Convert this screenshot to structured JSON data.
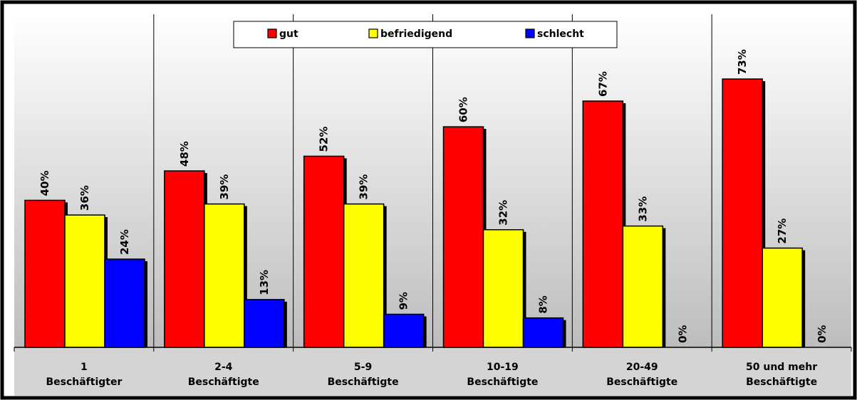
{
  "chart_data": {
    "type": "bar",
    "categories": [
      [
        "1",
        "Beschäftigter"
      ],
      [
        "2-4",
        "Beschäftigte"
      ],
      [
        "5-9",
        "Beschäftigte"
      ],
      [
        "10-19",
        "Beschäftigte"
      ],
      [
        "20-49",
        "Beschäftigte"
      ],
      [
        "50 und mehr",
        "Beschäftigte"
      ]
    ],
    "series": [
      {
        "name": "gut",
        "color": "#ff0000",
        "values": [
          40,
          48,
          52,
          60,
          67,
          73
        ],
        "labels": [
          "40%",
          "48%",
          "52%",
          "60%",
          "67%",
          "73%"
        ]
      },
      {
        "name": "befriedigend",
        "color": "#ffff00",
        "values": [
          36,
          39,
          39,
          32,
          33,
          27
        ],
        "labels": [
          "36%",
          "39%",
          "39%",
          "32%",
          "33%",
          "27%"
        ]
      },
      {
        "name": "schlecht",
        "color": "#0000ff",
        "values": [
          24,
          13,
          9,
          8,
          0,
          0
        ],
        "labels": [
          "24%",
          "13%",
          "9%",
          "8%",
          "0%",
          "0%"
        ]
      }
    ],
    "ylim": [
      0,
      80
    ],
    "value_unit": "%",
    "title": "",
    "xlabel": "",
    "ylabel": "",
    "legend_position": "top-center",
    "grid": false
  }
}
